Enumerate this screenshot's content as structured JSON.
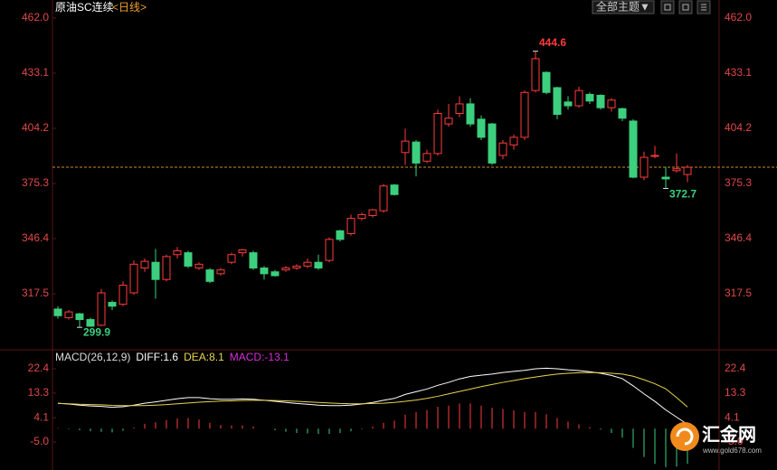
{
  "header": {
    "instrument": "原油SC连续",
    "period": "<日线>",
    "theme_button": "全部主题▼"
  },
  "watermark": {
    "brand": "汇金网",
    "site": "www.gold678.com"
  },
  "chart_data": [
    {
      "type": "candlestick",
      "up_color": "#ff3b3b",
      "down_color": "#3ccf7e",
      "last_price": 383.8,
      "last_price_color": "#d08a2a",
      "ylim": [
        289.1,
        466.7
      ],
      "yticks": [
        {
          "value": 462,
          "label": "462.0"
        },
        433.1,
        404.2,
        375.3,
        346.4,
        317.5
      ],
      "open": [
        309.5,
        305,
        307,
        304,
        301,
        313,
        312,
        318,
        331,
        334,
        325,
        338,
        339,
        331,
        330,
        328,
        334,
        339,
        339,
        331,
        329,
        330,
        331,
        332,
        334,
        335,
        350.5,
        349,
        357,
        358.5,
        361,
        374.5,
        391.5,
        397,
        387,
        391,
        406.5,
        412,
        417,
        409,
        406.5,
        390,
        395.5,
        399.5,
        424,
        433.5,
        425.5,
        418,
        416,
        422,
        421.5,
        415,
        414.5,
        408,
        378.6,
        389.5,
        378.6,
        382,
        380
      ],
      "high": [
        311,
        309,
        307.5,
        305,
        320,
        314,
        324,
        335,
        336,
        341,
        338,
        342,
        340,
        334,
        331,
        331,
        339,
        341,
        340,
        332,
        330,
        332,
        333,
        336,
        338,
        347,
        351,
        359,
        360,
        362,
        375,
        375,
        404,
        398,
        393,
        414,
        417,
        421,
        420,
        411,
        407,
        398,
        401,
        424,
        444.6,
        434,
        426,
        421,
        426,
        423,
        422,
        420,
        415,
        409,
        392,
        395,
        384,
        391,
        385
      ],
      "low": [
        304.5,
        304,
        299.9,
        300.2,
        300.5,
        309,
        311,
        317,
        329,
        315,
        324,
        336,
        331,
        330,
        323,
        327,
        333,
        337,
        330,
        325,
        326.5,
        329,
        330,
        331,
        330,
        334,
        345,
        348,
        356,
        357.5,
        360,
        369,
        385,
        379,
        386,
        390,
        405,
        410,
        405,
        398,
        385,
        388,
        393,
        398,
        423,
        422,
        409,
        414,
        415,
        417,
        414,
        413,
        408,
        378,
        377,
        388.5,
        372.7,
        381,
        376
      ],
      "close": [
        306,
        308,
        304,
        300.5,
        318,
        311,
        322,
        333,
        334.5,
        325,
        337,
        340,
        332,
        333,
        324,
        330,
        338,
        340.5,
        331,
        328,
        327,
        331,
        332,
        334,
        331,
        346,
        346,
        357,
        359,
        361.5,
        374,
        369.5,
        397.5,
        386,
        391,
        412,
        409.5,
        417,
        406.5,
        399.5,
        386,
        396.5,
        399.5,
        423,
        440.7,
        423,
        411.5,
        416,
        424,
        418.5,
        415,
        419,
        409.5,
        378.6,
        389,
        390,
        377.7,
        383,
        383.8
      ]
    },
    {
      "type": "macd",
      "label": "MACD(26,12,9)",
      "ylim": [
        -14.8,
        27.8
      ],
      "yticks": [
        22.4,
        13.3,
        4.1,
        {
          "value": -5,
          "label": "-5.0"
        }
      ],
      "series": [
        {
          "label": "DIFF:1.6",
          "color": "#ffffff",
          "values": [
            9.5,
            9.2,
            8.8,
            8.5,
            8.3,
            8.0,
            8.2,
            8.8,
            9.5,
            10.0,
            10.6,
            11.2,
            11.6,
            11.6,
            11.2,
            11.0,
            11.0,
            11.1,
            11.0,
            10.6,
            10.2,
            9.8,
            9.4,
            9.1,
            8.8,
            8.6,
            8.6,
            8.8,
            9.2,
            9.8,
            10.6,
            11.3,
            12.8,
            13.8,
            14.8,
            16.2,
            17.3,
            18.6,
            19.5,
            20.0,
            20.4,
            21.0,
            21.4,
            21.8,
            22.4,
            22.6,
            22.4,
            22.0,
            21.7,
            21.3,
            20.7,
            19.9,
            18.7,
            16.0,
            13.0,
            10.2,
            7.0,
            4.3,
            1.6
          ]
        },
        {
          "label": "DEA:8.1",
          "color": "#e8d44d",
          "values": [
            9.4,
            9.3,
            9.1,
            9.0,
            8.9,
            8.7,
            8.6,
            8.6,
            8.6,
            8.8,
            9.0,
            9.3,
            9.6,
            9.9,
            10.1,
            10.3,
            10.4,
            10.5,
            10.6,
            10.6,
            10.5,
            10.4,
            10.2,
            10.0,
            9.8,
            9.6,
            9.4,
            9.3,
            9.3,
            9.4,
            9.5,
            9.8,
            10.2,
            10.7,
            11.3,
            12.1,
            13.0,
            13.9,
            14.8,
            15.7,
            16.5,
            17.3,
            18.0,
            18.7,
            19.3,
            19.9,
            20.4,
            20.7,
            20.9,
            21.0,
            20.9,
            20.7,
            20.4,
            19.6,
            18.3,
            16.8,
            14.9,
            11.6,
            8.1
          ]
        },
        {
          "label": "MACD:-13.1",
          "color": "#d62fd6",
          "up_color": "#ff3b3b",
          "down_color": "#3ccf7e",
          "values": [
            0.2,
            -0.2,
            -0.6,
            -1.0,
            -1.2,
            -1.4,
            -0.8,
            0.4,
            1.8,
            2.4,
            3.2,
            3.8,
            4.0,
            3.4,
            2.2,
            1.4,
            1.2,
            1.2,
            0.8,
            0.0,
            -0.6,
            -1.2,
            -1.6,
            -1.8,
            -2.0,
            -2.0,
            -1.6,
            -1.0,
            -0.2,
            0.8,
            2.2,
            3.0,
            5.2,
            6.2,
            7.0,
            8.2,
            8.6,
            9.4,
            9.4,
            8.6,
            7.8,
            7.4,
            6.8,
            6.2,
            6.2,
            5.4,
            4.0,
            2.6,
            1.6,
            0.6,
            -0.4,
            -1.6,
            -3.4,
            -7.2,
            -10.6,
            -13.2,
            -14.4,
            -14.2,
            -13.1
          ]
        }
      ]
    }
  ]
}
